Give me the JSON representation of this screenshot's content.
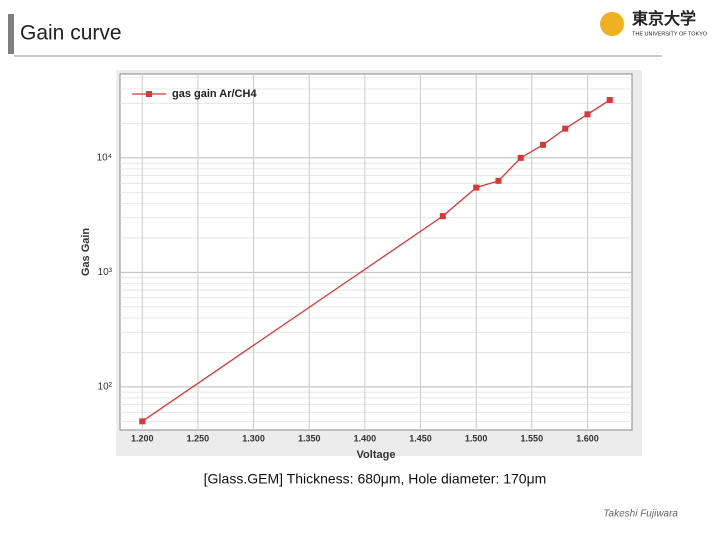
{
  "slide": {
    "title": "Gain curve",
    "logo_main": "東京大学",
    "logo_sub": "THE UNIVERSITY OF TOKYO",
    "caption": "[Glass.GEM] Thickness: 680μm, Hole diameter: 170μm",
    "author": "Takeshi Fujiwara"
  },
  "chart_data": {
    "type": "line",
    "xlabel": "Voltage",
    "ylabel": "Gas Gain",
    "x": [
      1.2,
      1.47,
      1.5,
      1.52,
      1.54,
      1.56,
      1.58,
      1.6,
      1.62
    ],
    "series": [
      {
        "name": "gas gain Ar/CH4",
        "color": "#e03535",
        "values": [
          50,
          3100,
          5500,
          6300,
          10000,
          13000,
          18000,
          24000,
          32000
        ]
      }
    ],
    "xlim": [
      1.18,
      1.64
    ],
    "xticks": [
      {
        "value": 1.2,
        "label": "1.200"
      },
      {
        "value": 1.25,
        "label": "1.250"
      },
      {
        "value": 1.3,
        "label": "1.300"
      },
      {
        "value": 1.35,
        "label": "1.350"
      },
      {
        "value": 1.4,
        "label": "1.400"
      },
      {
        "value": 1.45,
        "label": "1.450"
      },
      {
        "value": 1.5,
        "label": "1.500"
      },
      {
        "value": 1.55,
        "label": "1.550"
      },
      {
        "value": 1.6,
        "label": "1.600"
      }
    ],
    "ylim": [
      42,
      54000
    ],
    "yticks": [
      {
        "value": 100,
        "label": "10²"
      },
      {
        "value": 1000,
        "label": "10³"
      },
      {
        "value": 10000,
        "label": "10⁴"
      }
    ],
    "log_y": true,
    "grid": true,
    "legend": "upper left"
  }
}
